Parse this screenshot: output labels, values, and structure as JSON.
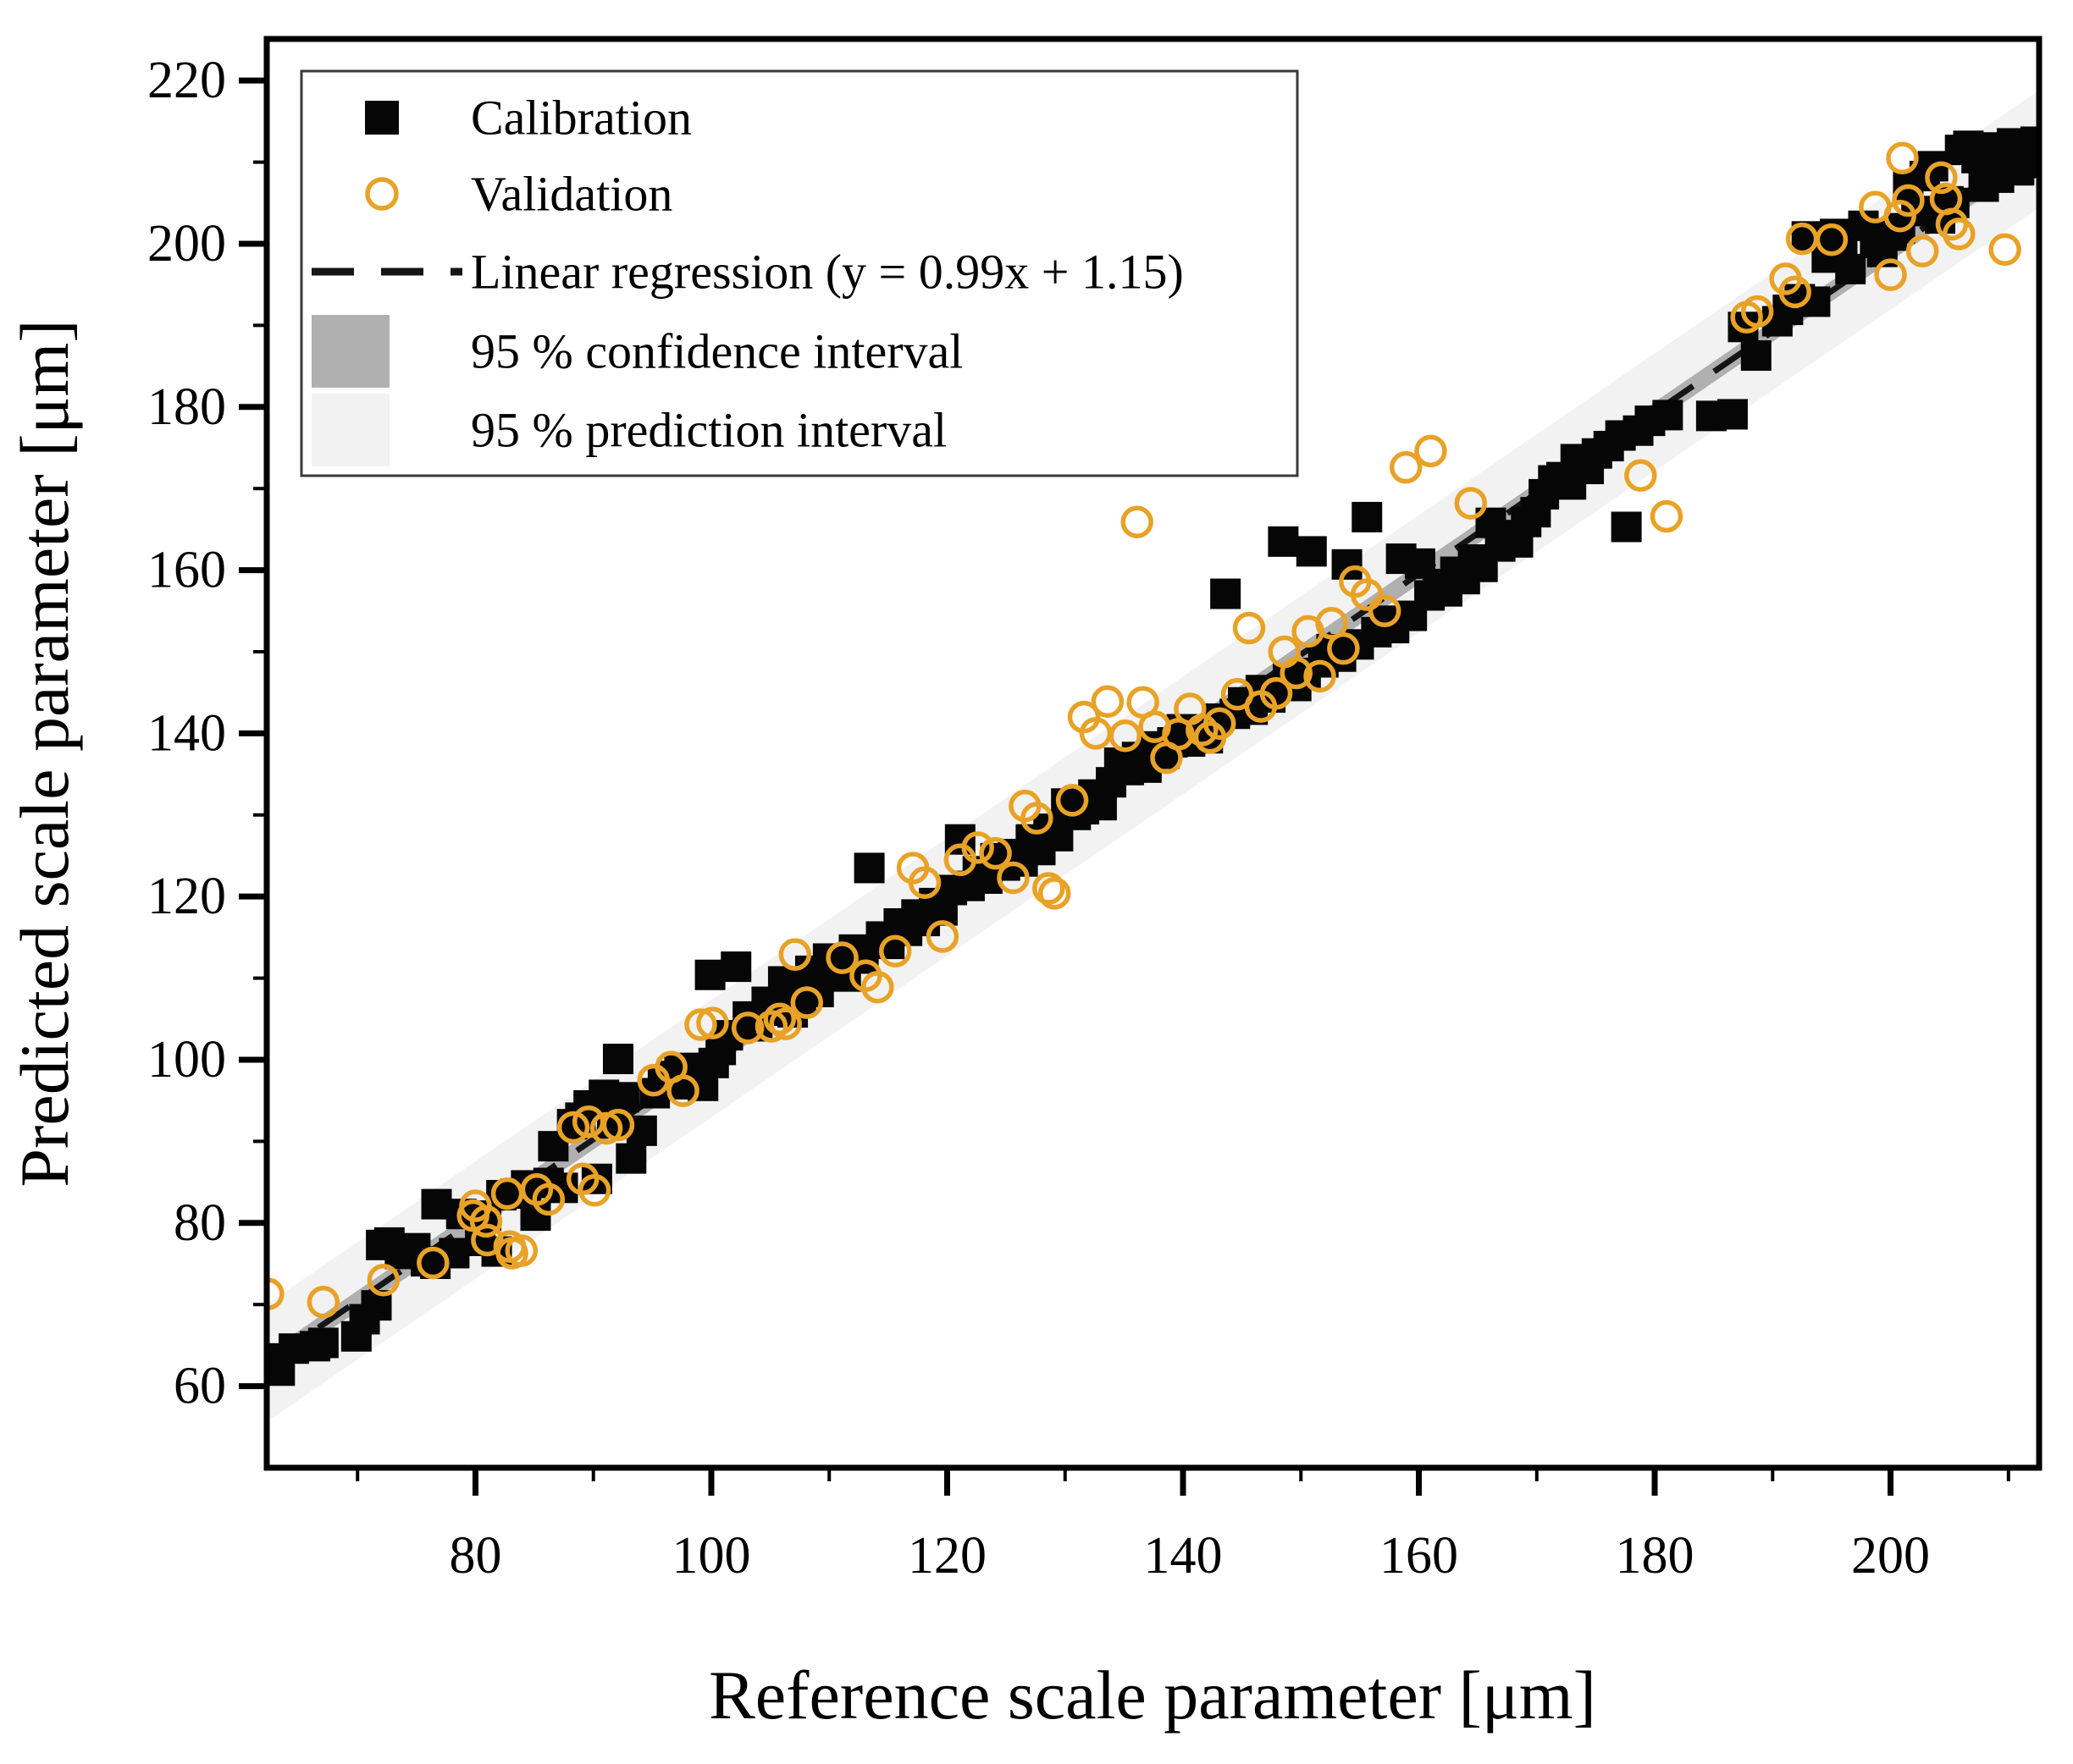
{
  "figure": {
    "background": "#ffffff"
  },
  "chart_data": {
    "type": "scatter",
    "title": "",
    "xlabel": "Reference scale parameter [μm]",
    "ylabel": "Predicted scale parameter [μm]",
    "grid": false,
    "axis": {
      "x_min": 62.3,
      "x_max": 212.6,
      "y_min": 50.0,
      "y_max": 225.1,
      "x_major_ticks": [
        80,
        100,
        120,
        140,
        160,
        180,
        200
      ],
      "x_minor_ticks": [
        70,
        90,
        110,
        130,
        150,
        170,
        190,
        210
      ],
      "y_major_ticks": [
        60,
        80,
        100,
        120,
        140,
        160,
        180,
        200,
        220
      ],
      "y_minor_ticks": [
        70,
        90,
        110,
        130,
        150,
        170,
        190,
        210
      ]
    },
    "legend": {
      "position": "top-left",
      "entries": [
        {
          "label": "Calibration",
          "marker": "filled-square"
        },
        {
          "label": "Validation",
          "marker": "open-circle"
        },
        {
          "label": "Linear regression (y = 0.99x + 1.15)",
          "marker": "dashed-line"
        },
        {
          "label": "95 % confidence interval",
          "marker": "filled-band"
        },
        {
          "label": "95 % prediction interval",
          "marker": "filled-band"
        }
      ]
    },
    "regression": {
      "slope": 0.99,
      "intercept": 1.15
    },
    "bands": {
      "prediction_half_width": 7.2,
      "confidence_half_width": 1.3
    },
    "colors": {
      "calibration": "#060606",
      "validation": "#E8A227",
      "regression_line": "#151515",
      "confidence_band": "#b0b0b0",
      "prediction_band": "#f2f2f2",
      "frame": "#000000"
    },
    "series": [
      {
        "name": "Calibration",
        "marker": "filled-square",
        "points": [
          [
            62.9,
            63.4
          ],
          [
            63.4,
            61.9
          ],
          [
            64.6,
            64.6
          ],
          [
            66.4,
            64.9
          ],
          [
            67.1,
            65.3
          ],
          [
            69.9,
            66.1
          ],
          [
            70.6,
            68.2
          ],
          [
            71.6,
            69.9
          ],
          [
            72.0,
            77.3
          ],
          [
            72.7,
            77.6
          ],
          [
            73.6,
            76.2
          ],
          [
            74.9,
            76.9
          ],
          [
            75.8,
            75.3
          ],
          [
            76.6,
            75.0
          ],
          [
            76.7,
            82.3
          ],
          [
            78.2,
            76.3
          ],
          [
            78.8,
            81.1
          ],
          [
            80.4,
            77.8
          ],
          [
            80.9,
            80.9
          ],
          [
            81.8,
            76.5
          ],
          [
            82.2,
            83.4
          ],
          [
            83.4,
            83.6
          ],
          [
            84.3,
            84.6
          ],
          [
            85.1,
            80.9
          ],
          [
            86.2,
            84.9
          ],
          [
            86.6,
            89.4
          ],
          [
            87.4,
            84.3
          ],
          [
            88.2,
            92.1
          ],
          [
            88.9,
            92.9
          ],
          [
            89.6,
            94.4
          ],
          [
            90.3,
            85.4
          ],
          [
            90.9,
            95.7
          ],
          [
            91.6,
            92.2
          ],
          [
            92.1,
            100.1
          ],
          [
            92.6,
            95.4
          ],
          [
            93.2,
            87.9
          ],
          [
            94.1,
            91.3
          ],
          [
            95.2,
            95.9
          ],
          [
            95.9,
            97.2
          ],
          [
            96.7,
            98.0
          ],
          [
            97.3,
            98.7
          ],
          [
            98.0,
            97.0
          ],
          [
            98.6,
            99.0
          ],
          [
            99.3,
            96.8
          ],
          [
            99.9,
            110.4
          ],
          [
            100.2,
            99.6
          ],
          [
            100.8,
            101.2
          ],
          [
            101.4,
            103.0
          ],
          [
            102.1,
            111.4
          ],
          [
            103.1,
            105.3
          ],
          [
            103.9,
            104.1
          ],
          [
            104.7,
            107.1
          ],
          [
            105.4,
            106.0
          ],
          [
            106.1,
            109.6
          ],
          [
            106.9,
            105.8
          ],
          [
            107.6,
            107.4
          ],
          [
            108.4,
            110.9
          ],
          [
            109.1,
            108.3
          ],
          [
            109.9,
            112.4
          ],
          [
            110.6,
            111.1
          ],
          [
            111.4,
            110.2
          ],
          [
            112.1,
            113.5
          ],
          [
            112.9,
            112.4
          ],
          [
            113.4,
            123.5
          ],
          [
            114.4,
            115.1
          ],
          [
            115.1,
            114.2
          ],
          [
            115.9,
            116.7
          ],
          [
            116.6,
            115.8
          ],
          [
            117.4,
            117.8
          ],
          [
            118.1,
            117.0
          ],
          [
            118.9,
            119.2
          ],
          [
            119.6,
            118.3
          ],
          [
            120.4,
            120.8
          ],
          [
            121.1,
            127.0
          ],
          [
            121.9,
            121.3
          ],
          [
            122.6,
            123.1
          ],
          [
            123.4,
            122.2
          ],
          [
            124.1,
            124.7
          ],
          [
            124.9,
            123.8
          ],
          [
            125.6,
            125.2
          ],
          [
            126.4,
            124.3
          ],
          [
            127.1,
            127.0
          ],
          [
            127.9,
            125.7
          ],
          [
            128.6,
            128.3
          ],
          [
            129.4,
            127.4
          ],
          [
            130.1,
            131.4
          ],
          [
            130.9,
            130.0
          ],
          [
            131.6,
            130.7
          ],
          [
            132.4,
            132.5
          ],
          [
            133.1,
            131.2
          ],
          [
            133.9,
            134.0
          ],
          [
            134.6,
            136.4
          ],
          [
            135.4,
            135.5
          ],
          [
            136.1,
            137.1
          ],
          [
            136.9,
            135.8
          ],
          [
            137.6,
            138.4
          ],
          [
            138.4,
            137.5
          ],
          [
            139.1,
            138.9
          ],
          [
            139.9,
            140.5
          ],
          [
            140.6,
            139.0
          ],
          [
            141.4,
            140.3
          ],
          [
            142.1,
            139.4
          ],
          [
            142.9,
            141.8
          ],
          [
            143.6,
            157.1
          ],
          [
            144.4,
            142.4
          ],
          [
            145.1,
            143.8
          ],
          [
            145.9,
            142.9
          ],
          [
            146.6,
            145.3
          ],
          [
            147.4,
            144.4
          ],
          [
            148.5,
            163.5
          ],
          [
            148.9,
            146.7
          ],
          [
            149.6,
            145.8
          ],
          [
            150.4,
            147.4
          ],
          [
            150.9,
            162.3
          ],
          [
            151.9,
            148.7
          ],
          [
            152.6,
            150.3
          ],
          [
            153.4,
            149.4
          ],
          [
            153.9,
            160.7
          ],
          [
            154.9,
            150.9
          ],
          [
            155.6,
            166.5
          ],
          [
            156.4,
            152.4
          ],
          [
            157.1,
            153.8
          ],
          [
            157.9,
            152.9
          ],
          [
            158.5,
            161.4
          ],
          [
            159.4,
            154.4
          ],
          [
            160.1,
            160.8
          ],
          [
            160.9,
            156.9
          ],
          [
            161.6,
            158.3
          ],
          [
            162.4,
            157.4
          ],
          [
            163.1,
            159.8
          ],
          [
            163.9,
            158.9
          ],
          [
            164.6,
            161.3
          ],
          [
            165.4,
            160.4
          ],
          [
            166.1,
            165.8
          ],
          [
            166.9,
            162.9
          ],
          [
            167.6,
            164.3
          ],
          [
            168.4,
            163.4
          ],
          [
            169.1,
            165.9
          ],
          [
            169.9,
            167.1
          ],
          [
            170.6,
            169.3
          ],
          [
            171.4,
            171.0
          ],
          [
            172.1,
            171.4
          ],
          [
            172.9,
            170.5
          ],
          [
            173.3,
            173.6
          ],
          [
            174.4,
            172.4
          ],
          [
            175.1,
            174.3
          ],
          [
            176.1,
            175.2
          ],
          [
            177.1,
            176.5
          ],
          [
            177.6,
            165.3
          ],
          [
            178.6,
            177.1
          ],
          [
            179.6,
            178.3
          ],
          [
            181.1,
            179.0
          ],
          [
            184.8,
            178.9
          ],
          [
            186.6,
            179.1
          ],
          [
            187.5,
            189.8
          ],
          [
            188.6,
            186.3
          ],
          [
            190.4,
            190.5
          ],
          [
            191.3,
            191.9
          ],
          [
            192.3,
            193.2
          ],
          [
            192.9,
            200.9
          ],
          [
            193.6,
            192.9
          ],
          [
            194.6,
            198.3
          ],
          [
            195.3,
            201.2
          ],
          [
            195.9,
            199.6
          ],
          [
            196.6,
            196.9
          ],
          [
            197.7,
            202.2
          ],
          [
            198.7,
            200.1
          ],
          [
            199.3,
            199.0
          ],
          [
            200.1,
            201.0
          ],
          [
            200.8,
            201.9
          ],
          [
            201.5,
            207.2
          ],
          [
            202.2,
            204.0
          ],
          [
            202.9,
            208.3
          ],
          [
            203.6,
            209.5
          ],
          [
            204.2,
            203.1
          ],
          [
            204.9,
            205.2
          ],
          [
            205.4,
            205.0
          ],
          [
            205.9,
            211.5
          ],
          [
            206.6,
            212.0
          ],
          [
            207.3,
            210.5
          ],
          [
            207.9,
            207.0
          ],
          [
            208.5,
            211.8
          ],
          [
            209.2,
            208.1
          ],
          [
            209.7,
            210.9
          ],
          [
            210.3,
            212.3
          ],
          [
            210.9,
            209.0
          ],
          [
            211.5,
            211.2
          ],
          [
            212.0,
            209.9
          ],
          [
            212.3,
            212.5
          ],
          [
            212.5,
            210.7
          ]
        ]
      },
      {
        "name": "Validation",
        "marker": "open-circle",
        "points": [
          [
            62.4,
            71.3
          ],
          [
            67.1,
            70.3
          ],
          [
            72.2,
            73.0
          ],
          [
            76.4,
            75.1
          ],
          [
            79.8,
            80.9
          ],
          [
            80.0,
            82.1
          ],
          [
            80.9,
            80.2
          ],
          [
            81.0,
            77.9
          ],
          [
            82.7,
            83.6
          ],
          [
            82.9,
            77.1
          ],
          [
            83.1,
            76.3
          ],
          [
            83.9,
            76.6
          ],
          [
            85.2,
            84.1
          ],
          [
            86.2,
            82.9
          ],
          [
            88.3,
            91.7
          ],
          [
            89.1,
            85.4
          ],
          [
            89.6,
            92.4
          ],
          [
            90.1,
            84.0
          ],
          [
            91.1,
            91.6
          ],
          [
            92.1,
            92.0
          ],
          [
            95.1,
            97.5
          ],
          [
            96.6,
            99.1
          ],
          [
            97.6,
            96.2
          ],
          [
            99.1,
            104.3
          ],
          [
            100.1,
            104.5
          ],
          [
            103.1,
            103.9
          ],
          [
            105.1,
            104.1
          ],
          [
            105.8,
            105.0
          ],
          [
            106.3,
            104.4
          ],
          [
            107.1,
            112.9
          ],
          [
            108.1,
            107.0
          ],
          [
            111.1,
            112.5
          ],
          [
            113.1,
            110.3
          ],
          [
            114.1,
            108.9
          ],
          [
            115.6,
            113.3
          ],
          [
            117.1,
            123.5
          ],
          [
            118.1,
            121.7
          ],
          [
            119.6,
            115.1
          ],
          [
            121.1,
            124.5
          ],
          [
            122.6,
            126.0
          ],
          [
            124.1,
            125.3
          ],
          [
            125.6,
            122.3
          ],
          [
            126.6,
            131.1
          ],
          [
            127.6,
            129.6
          ],
          [
            128.6,
            121.0
          ],
          [
            129.1,
            120.4
          ],
          [
            130.6,
            131.8
          ],
          [
            131.6,
            142.0
          ],
          [
            132.6,
            140.0
          ],
          [
            133.6,
            143.9
          ],
          [
            135.1,
            139.7
          ],
          [
            136.1,
            165.9
          ],
          [
            136.6,
            143.8
          ],
          [
            137.6,
            140.8
          ],
          [
            138.6,
            137.0
          ],
          [
            139.6,
            139.9
          ],
          [
            140.6,
            143.0
          ],
          [
            141.6,
            140.4
          ],
          [
            142.3,
            139.5
          ],
          [
            143.1,
            141.2
          ],
          [
            144.6,
            144.8
          ],
          [
            145.6,
            152.9
          ],
          [
            146.6,
            143.3
          ],
          [
            147.9,
            144.9
          ],
          [
            148.6,
            150.0
          ],
          [
            149.6,
            147.4
          ],
          [
            150.6,
            152.5
          ],
          [
            151.6,
            147.0
          ],
          [
            152.6,
            153.5
          ],
          [
            153.6,
            150.4
          ],
          [
            154.6,
            158.6
          ],
          [
            155.6,
            157.0
          ],
          [
            157.1,
            155.0
          ],
          [
            158.9,
            172.6
          ],
          [
            161.0,
            174.6
          ],
          [
            164.4,
            168.2
          ],
          [
            178.8,
            171.6
          ],
          [
            181.0,
            166.6
          ],
          [
            187.8,
            191.0
          ],
          [
            188.7,
            191.7
          ],
          [
            191.1,
            195.7
          ],
          [
            191.9,
            194.1
          ],
          [
            192.5,
            200.6
          ],
          [
            195.0,
            200.5
          ],
          [
            198.7,
            204.5
          ],
          [
            200.0,
            196.2
          ],
          [
            200.8,
            203.4
          ],
          [
            201.0,
            210.5
          ],
          [
            201.5,
            205.3
          ],
          [
            202.7,
            199.1
          ],
          [
            204.3,
            208.1
          ],
          [
            204.7,
            205.5
          ],
          [
            205.2,
            202.4
          ],
          [
            205.8,
            201.2
          ],
          [
            209.7,
            199.3
          ]
        ]
      }
    ]
  }
}
